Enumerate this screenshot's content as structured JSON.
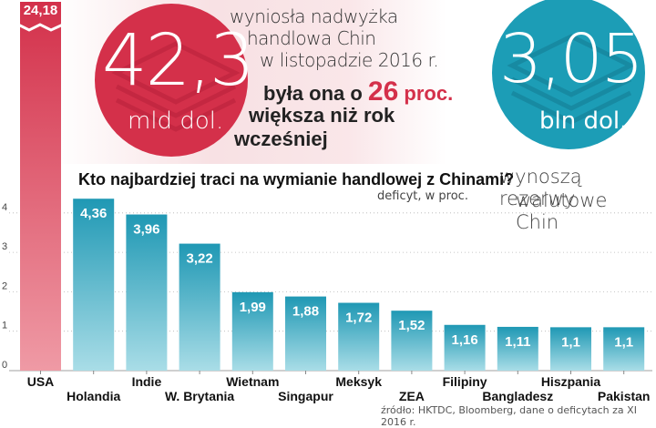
{
  "colors": {
    "accent_red": "#d4304a",
    "accent_teal": "#1c9db6",
    "bar_gradient_top": "#1f98b4",
    "bar_gradient_bottom": "#a9dde7",
    "usa_bar_top": "#d3304a",
    "usa_bar_bottom": "#ef9aa5"
  },
  "headline": {
    "surplus_value": "42,3",
    "surplus_unit": "mld dol.",
    "surplus_text_1": "wyniosła nadwyżka",
    "surplus_text_2": "handlowa Chin",
    "surplus_text_3": "w listopadzie 2016 r.",
    "growth_pre": "była ona o",
    "growth_value": "26",
    "growth_post": "proc.",
    "growth_text_2": "większa niż rok",
    "growth_text_3": "wcześniej"
  },
  "reserves": {
    "value": "3,05",
    "unit": "bln dol.",
    "caption_1": "wynoszą rezerwy",
    "caption_2": "walutowe Chin"
  },
  "icons": [
    "stacked-coins-icon-red",
    "stacked-coins-icon-teal"
  ],
  "source": "źródło: HKTDC, Bloomberg, dane o deficytach za XI 2016 r.",
  "chart_data": {
    "type": "bar",
    "title": "Kto najbardziej traci na wymianie handlowej z Chinami?",
    "subtitle": "deficyt, w proc.",
    "categories": [
      "USA",
      "Holandia",
      "Indie",
      "W. Brytania",
      "Wietnam",
      "Singapur",
      "Meksyk",
      "ZEA",
      "Filipiny",
      "Bangladesz",
      "Hiszpania",
      "Pakistan"
    ],
    "values": [
      24.18,
      4.36,
      3.96,
      3.22,
      1.99,
      1.88,
      1.72,
      1.52,
      1.16,
      1.11,
      1.1,
      1.1
    ],
    "value_labels": [
      "24,18",
      "4,36",
      "3,96",
      "3,22",
      "1,99",
      "1,88",
      "1,72",
      "1,52",
      "1,16",
      "1,11",
      "1,1",
      "1,1"
    ],
    "y_ticks": [
      0,
      1,
      2,
      3,
      4
    ],
    "ylim": [
      0,
      4.5
    ],
    "axis_break_category": "USA",
    "grid": true
  }
}
